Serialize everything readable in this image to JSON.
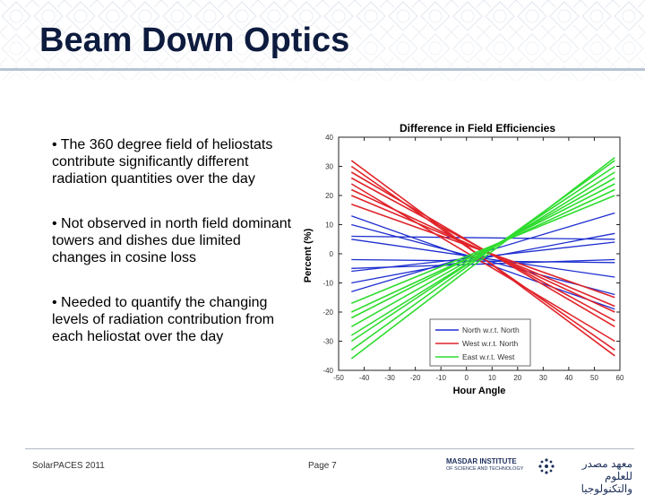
{
  "slide": {
    "title": "Beam Down Optics",
    "bullets": [
      "• The 360 degree field of heliostats contribute significantly different radiation quantities over the day",
      "• Not observed in north field dominant towers and dishes due limited changes in cosine loss",
      "• Needed to quantify the changing levels of radiation contribution from each heliostat over the day"
    ],
    "footer_left": "SolarPACES 2011",
    "footer_page": "Page 7",
    "logo_text_en": "MASDAR INSTITUTE",
    "logo_text_en_sub": "OF SCIENCE AND TECHNOLOGY",
    "logo_text_ar": "معهد مصدر للعلوم والتكنولوجيا"
  },
  "colors": {
    "title": "#0d1b3e",
    "north": "#1f2fd0",
    "west": "#e0242a",
    "east": "#2fdc2f"
  },
  "chart_data": {
    "type": "line",
    "title": "Difference in Field Efficiencies",
    "xlabel": "Hour Angle",
    "ylabel": "Percent (%)",
    "xlim": [
      -50,
      60
    ],
    "ylim": [
      -40,
      40
    ],
    "xticks": [
      -50,
      -40,
      -30,
      -20,
      -10,
      0,
      10,
      20,
      30,
      40,
      50,
      60
    ],
    "yticks": [
      40,
      30,
      20,
      10,
      0,
      -10,
      -20,
      -30,
      -40
    ],
    "legend_position": "bottom-right",
    "legend": [
      "North w.r.t. North",
      "West w.r.t. North",
      "East w.r.t. West"
    ],
    "series": [
      {
        "name": "North w.r.t. North",
        "group": "north",
        "x": [
          -45,
          58
        ],
        "y": [
          13,
          -19
        ]
      },
      {
        "name": "North w.r.t. North",
        "group": "north",
        "x": [
          -45,
          58
        ],
        "y": [
          10,
          -14
        ]
      },
      {
        "name": "North w.r.t. North",
        "group": "north",
        "x": [
          -45,
          58
        ],
        "y": [
          6,
          5
        ]
      },
      {
        "name": "North w.r.t. North",
        "group": "north",
        "x": [
          -45,
          58
        ],
        "y": [
          5,
          -8
        ]
      },
      {
        "name": "North w.r.t. North",
        "group": "north",
        "x": [
          -45,
          58
        ],
        "y": [
          -5,
          -2
        ]
      },
      {
        "name": "North w.r.t. North",
        "group": "north",
        "x": [
          -45,
          58
        ],
        "y": [
          -13,
          14
        ]
      },
      {
        "name": "North w.r.t. North",
        "group": "north",
        "x": [
          -45,
          58
        ],
        "y": [
          -10,
          7
        ]
      },
      {
        "name": "North w.r.t. North",
        "group": "north",
        "x": [
          -45,
          58
        ],
        "y": [
          -6,
          4
        ]
      },
      {
        "name": "North w.r.t. North",
        "group": "north",
        "x": [
          -45,
          58
        ],
        "y": [
          -2,
          -3
        ]
      },
      {
        "name": "West w.r.t. North",
        "group": "west",
        "x": [
          -45,
          58
        ],
        "y": [
          32,
          -35
        ]
      },
      {
        "name": "West w.r.t. North",
        "group": "west",
        "x": [
          -45,
          58
        ],
        "y": [
          30,
          -33
        ]
      },
      {
        "name": "West w.r.t. North",
        "group": "west",
        "x": [
          -45,
          58
        ],
        "y": [
          28,
          -25
        ]
      },
      {
        "name": "West w.r.t. North",
        "group": "west",
        "x": [
          -45,
          58
        ],
        "y": [
          26,
          -23
        ]
      },
      {
        "name": "West w.r.t. North",
        "group": "west",
        "x": [
          -45,
          58
        ],
        "y": [
          24,
          -30
        ]
      },
      {
        "name": "West w.r.t. North",
        "group": "west",
        "x": [
          -45,
          58
        ],
        "y": [
          22,
          -20
        ]
      },
      {
        "name": "West w.r.t. North",
        "group": "west",
        "x": [
          -45,
          58
        ],
        "y": [
          20,
          -18
        ]
      },
      {
        "name": "West w.r.t. North",
        "group": "west",
        "x": [
          -45,
          58
        ],
        "y": [
          17,
          -15
        ]
      },
      {
        "name": "East w.r.t. West",
        "group": "east",
        "x": [
          -45,
          58
        ],
        "y": [
          -36,
          33
        ]
      },
      {
        "name": "East w.r.t. West",
        "group": "east",
        "x": [
          -45,
          58
        ],
        "y": [
          -33,
          32
        ]
      },
      {
        "name": "East w.r.t. West",
        "group": "east",
        "x": [
          -45,
          58
        ],
        "y": [
          -30,
          30
        ]
      },
      {
        "name": "East w.r.t. West",
        "group": "east",
        "x": [
          -45,
          58
        ],
        "y": [
          -28,
          28
        ]
      },
      {
        "name": "East w.r.t. West",
        "group": "east",
        "x": [
          -45,
          58
        ],
        "y": [
          -25,
          26
        ]
      },
      {
        "name": "East w.r.t. West",
        "group": "east",
        "x": [
          -45,
          58
        ],
        "y": [
          -22,
          24
        ]
      },
      {
        "name": "East w.r.t. West",
        "group": "east",
        "x": [
          -45,
          58
        ],
        "y": [
          -20,
          22
        ]
      },
      {
        "name": "East w.r.t. West",
        "group": "east",
        "x": [
          -45,
          58
        ],
        "y": [
          -17,
          20
        ]
      }
    ]
  }
}
